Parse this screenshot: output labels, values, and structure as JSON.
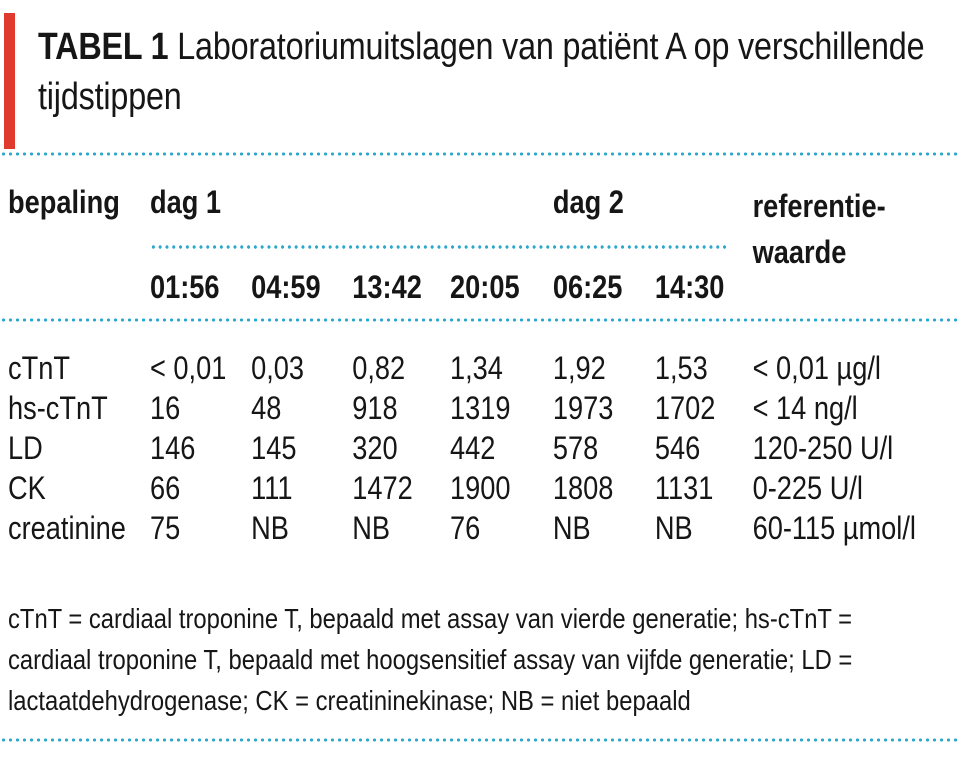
{
  "colors": {
    "accent_red": "#e03a2f",
    "dot_blue": "#2ba8ca",
    "text": "#161616"
  },
  "title": {
    "label": "TABEL 1",
    "text": "Laboratoriumuitslagen van patiënt A op verschillende tijdstippen"
  },
  "table": {
    "col_determination": "bepaling",
    "group_day1": "dag 1",
    "group_day2": "dag 2",
    "reference_line1": "referentie-",
    "reference_line2": "waarde",
    "times": [
      "01:56",
      "04:59",
      "13:42",
      "20:05",
      "06:25",
      "14:30"
    ],
    "rows": [
      {
        "label": "cTnT",
        "values": [
          "< 0,01",
          "0,03",
          "0,82",
          "1,34",
          "1,92",
          "1,53"
        ],
        "reference": "< 0,01 µg/l"
      },
      {
        "label": "hs-cTnT",
        "values": [
          "16",
          "48",
          "918",
          "1319",
          "1973",
          "1702"
        ],
        "reference": "< 14 ng/l"
      },
      {
        "label": "LD",
        "values": [
          "146",
          "145",
          "320",
          "442",
          "578",
          "546"
        ],
        "reference": "120-250 U/l"
      },
      {
        "label": "CK",
        "values": [
          "66",
          "111",
          "1472",
          "1900",
          "1808",
          "1131"
        ],
        "reference": "0-225 U/l"
      },
      {
        "label": "creatinine",
        "values": [
          "75",
          "NB",
          "NB",
          "76",
          "NB",
          "NB"
        ],
        "reference": "60-115 µmol/l"
      }
    ]
  },
  "footnote": {
    "lines": [
      "cTnT = cardiaal troponine T, bepaald met assay van vierde generatie; hs-cTnT =",
      "cardiaal troponine T, bepaald met hoogsensitief assay van vijfde generatie; LD =",
      "lactaatdehydrogenase; CK = creatininekinase; NB = niet bepaald"
    ]
  }
}
